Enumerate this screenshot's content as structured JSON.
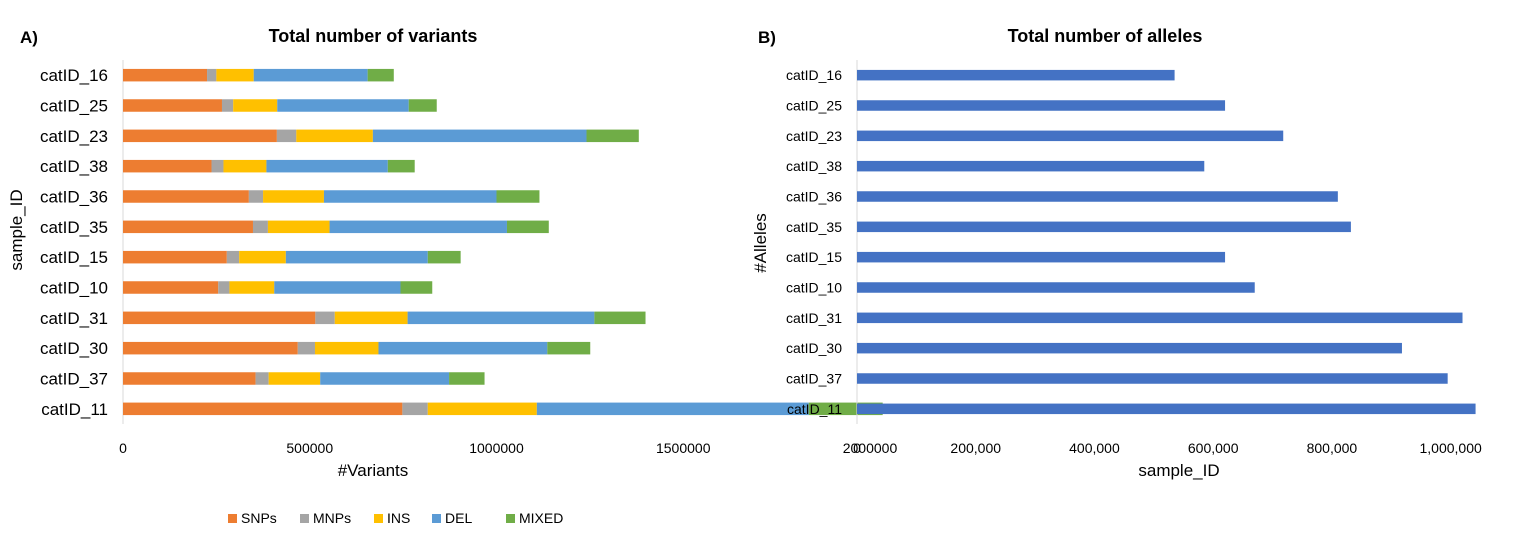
{
  "chart_data": [
    {
      "type": "bar",
      "orientation": "horizontal",
      "stacked": true,
      "panel_label": "A)",
      "title": "Total number of variants",
      "xlabel": "#Variants",
      "ylabel": "sample_ID",
      "xlim": [
        0,
        2000000
      ],
      "xticks": [
        "0",
        "500000",
        "1000000",
        "1500000",
        "2000000"
      ],
      "grid": false,
      "legend_position": "bottom",
      "categories": [
        "catID_16",
        "catID_25",
        "catID_23",
        "catID_38",
        "catID_36",
        "catID_35",
        "catID_15",
        "catID_10",
        "catID_31",
        "catID_30",
        "catID_37",
        "catID_11"
      ],
      "series": [
        {
          "name": "SNPs",
          "color": "#ED7D31",
          "values": [
            225000,
            265000,
            412000,
            237000,
            337000,
            348000,
            278000,
            255000,
            515000,
            468000,
            355000,
            748000
          ]
        },
        {
          "name": "MNPs",
          "color": "#A5A5A5",
          "values": [
            25000,
            30000,
            52000,
            32000,
            38000,
            40000,
            33000,
            30000,
            52000,
            46000,
            35000,
            68000
          ]
        },
        {
          "name": "INS",
          "color": "#FFC000",
          "values": [
            100000,
            118000,
            205000,
            115000,
            163000,
            165000,
            125000,
            120000,
            195000,
            170000,
            138000,
            292000
          ]
        },
        {
          "name": "DEL",
          "color": "#5B9BD5",
          "values": [
            305000,
            352000,
            572000,
            325000,
            462000,
            475000,
            380000,
            338000,
            500000,
            452000,
            345000,
            728000
          ]
        },
        {
          "name": "MIXED",
          "color": "#70AD47",
          "values": [
            70000,
            75000,
            140000,
            72000,
            115000,
            112000,
            88000,
            85000,
            137000,
            115000,
            95000,
            198000
          ]
        }
      ]
    },
    {
      "type": "bar",
      "orientation": "horizontal",
      "panel_label": "B)",
      "title": "Total number of alleles",
      "xlabel": "sample_ID",
      "ylabel": "#Alleles",
      "xlim": [
        0,
        1100000
      ],
      "xticks": [
        "0",
        "200,000",
        "400,000",
        "600,000",
        "800,000",
        "1,000,000"
      ],
      "grid": false,
      "categories": [
        "catID_16",
        "catID_25",
        "catID_23",
        "catID_38",
        "catID_36",
        "catID_35",
        "catID_15",
        "catID_10",
        "catID_31",
        "catID_30",
        "catID_37",
        "catID_11"
      ],
      "series": [
        {
          "color": "#4472C4",
          "values": [
            535000,
            620000,
            718000,
            585000,
            810000,
            832000,
            620000,
            670000,
            1020000,
            918000,
            995000,
            1042000
          ]
        }
      ]
    }
  ]
}
